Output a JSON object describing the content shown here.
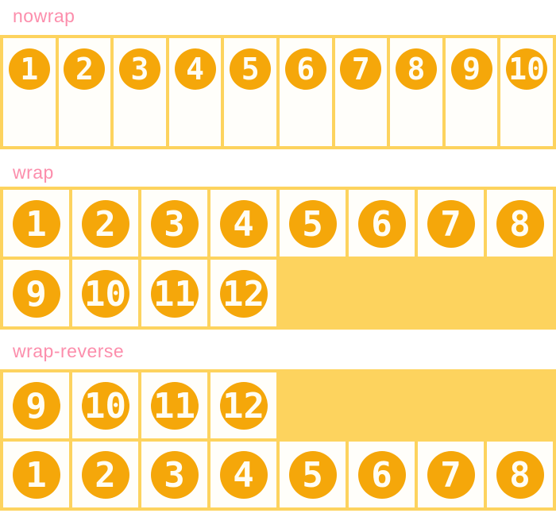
{
  "colors": {
    "label_pink": "#fc8eac",
    "gold": "#fdd35e",
    "circle_orange": "#f5a70a",
    "number_text": "#fffdf4",
    "item_background": "#fffefa",
    "page_background": "#ffffff"
  },
  "sections": [
    {
      "id": "nowrap",
      "label": "nowrap",
      "items": [
        "1",
        "2",
        "3",
        "4",
        "5",
        "6",
        "7",
        "8",
        "9",
        "10"
      ]
    },
    {
      "id": "wrap",
      "label": "wrap",
      "items": [
        "1",
        "2",
        "3",
        "4",
        "5",
        "6",
        "7",
        "8",
        "9",
        "10",
        "11",
        "12"
      ]
    },
    {
      "id": "wrap-reverse",
      "label": "wrap-reverse",
      "items": [
        "1",
        "2",
        "3",
        "4",
        "5",
        "6",
        "7",
        "8",
        "9",
        "10",
        "11",
        "12"
      ]
    }
  ]
}
